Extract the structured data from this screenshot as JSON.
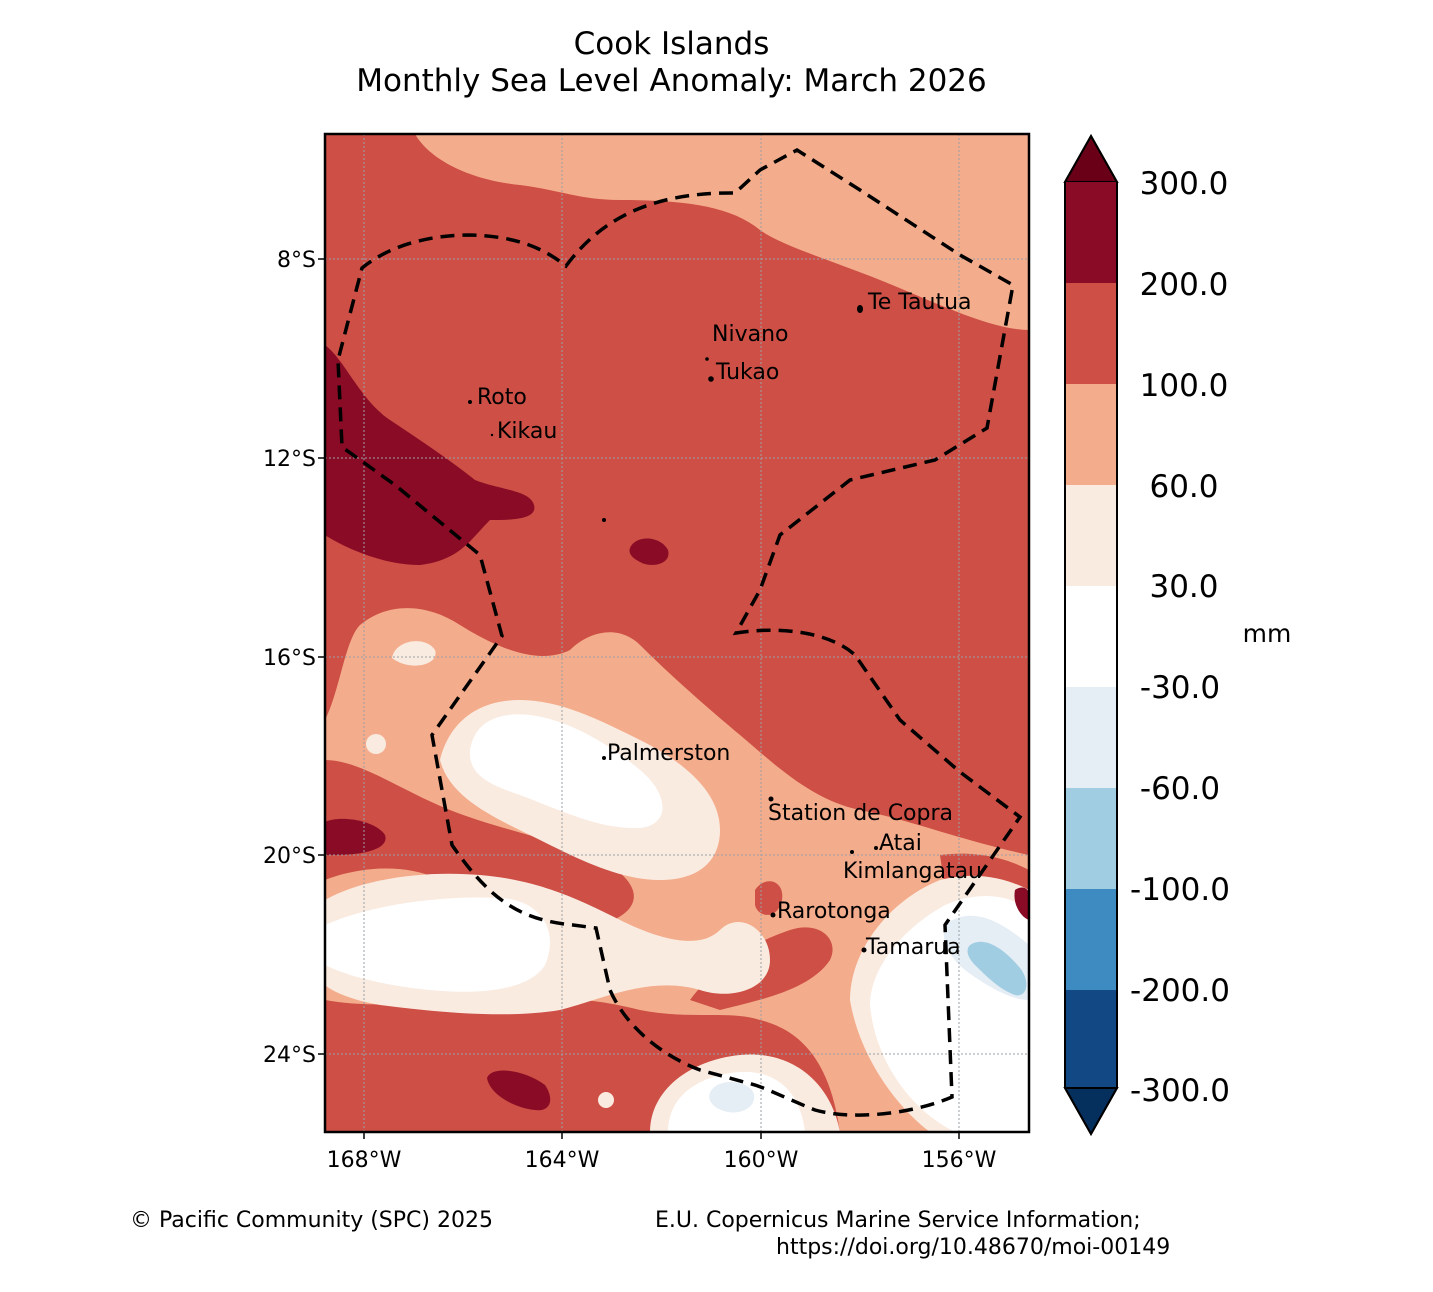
{
  "title": {
    "line1": "Cook Islands",
    "line2": "Monthly Sea Level Anomaly: March 2026"
  },
  "axes": {
    "lon_ticks": [
      "168°W",
      "164°W",
      "160°W",
      "156°W"
    ],
    "lat_ticks": [
      "8°S",
      "12°S",
      "16°S",
      "20°S",
      "24°S"
    ],
    "lon_range": [
      -168.8,
      -154.6
    ],
    "lat_range": [
      -5.5,
      -25.6
    ]
  },
  "places": [
    {
      "name": "Te Tautua",
      "lon": -157.97,
      "lat": -9.0
    },
    {
      "name": "Nivano",
      "lon": -161.0,
      "lat": -10.0
    },
    {
      "name": "Tukao",
      "lon": -161.0,
      "lat": -10.4
    },
    {
      "name": "Roto",
      "lon": -165.8,
      "lat": -10.9
    },
    {
      "name": "Kikau",
      "lon": -165.4,
      "lat": -11.5
    },
    {
      "name": "Palmerston",
      "lon": -163.2,
      "lat": -18.0
    },
    {
      "name": "Station de Copra",
      "lon": -159.8,
      "lat": -18.9
    },
    {
      "name": "Atai",
      "lon": -157.7,
      "lat": -19.8
    },
    {
      "name": "Kimlangatau",
      "lon": -158.1,
      "lat": -20.0
    },
    {
      "name": "Rarotonga",
      "lon": -159.8,
      "lat": -21.2
    },
    {
      "name": "Tamarua",
      "lon": -157.9,
      "lat": -21.9
    }
  ],
  "colorbar": {
    "labels": [
      "300.0",
      "200.0",
      "100.0",
      "60.0",
      "30.0",
      "-30.0",
      "-60.0",
      "-100.0",
      "-200.0",
      "-300.0"
    ],
    "colors": [
      "#8a0b25",
      "#cd4f45",
      "#f4ad8c",
      "#faebe1",
      "#ffffff",
      "#e5edf5",
      "#a1cde3",
      "#3d8bc0",
      "#124985"
    ],
    "extend_max_color": "#6a0018",
    "extend_min_color": "#05305e",
    "unit": "mm"
  },
  "footer": {
    "copyright": "© Pacific Community (SPC) 2025",
    "source_line1": "E.U. Copernicus Marine Service Information;",
    "source_line2": "https://doi.org/10.48670/moi-00149"
  }
}
